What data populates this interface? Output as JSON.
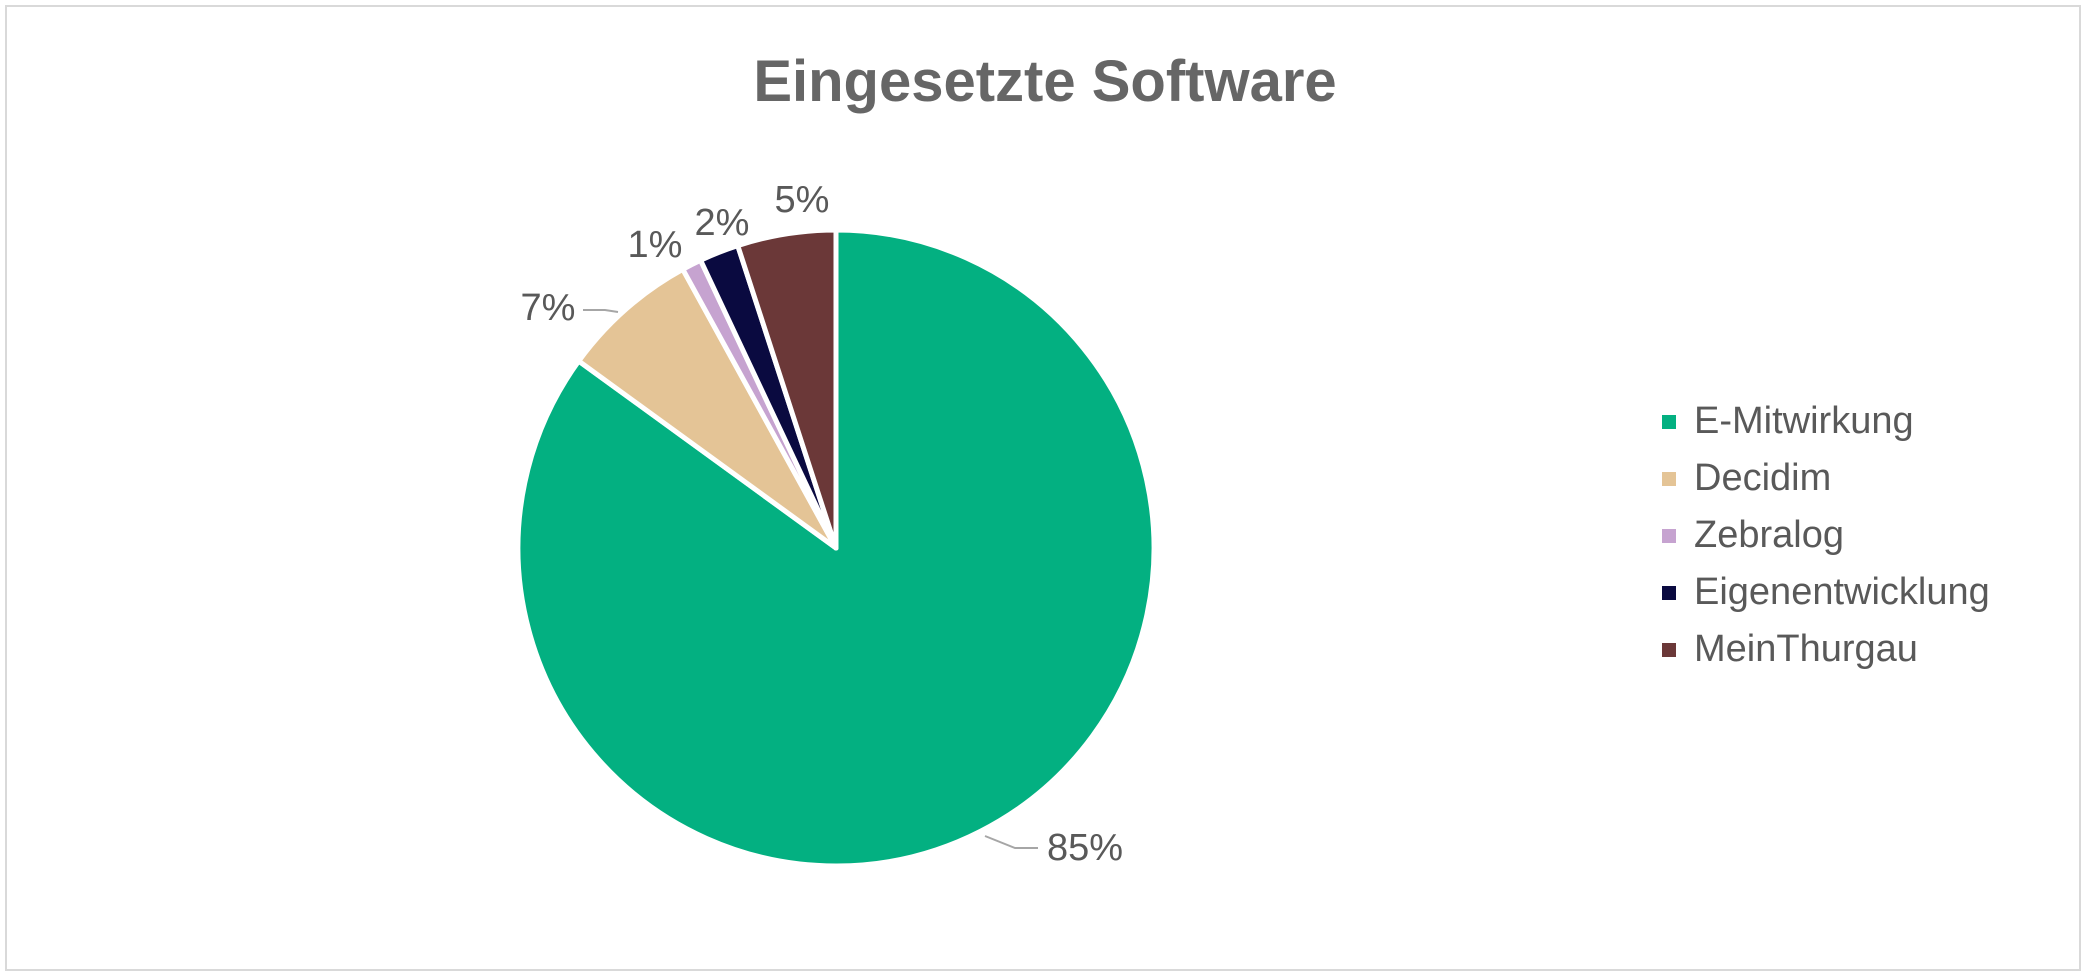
{
  "chart_data": {
    "type": "pie",
    "title": "Eingesetzte Software",
    "slices": [
      {
        "name": "E-Mitwirkung",
        "value": 85,
        "label": "85%",
        "color": "#03b081"
      },
      {
        "name": "Decidim",
        "value": 7,
        "label": "7%",
        "color": "#e4c496"
      },
      {
        "name": "Zebralog",
        "value": 1,
        "label": "1%",
        "color": "#c6a3d0"
      },
      {
        "name": "Eigenentwicklung",
        "value": 2,
        "label": "2%",
        "color": "#0a0a40"
      },
      {
        "name": "MeinThurgau",
        "value": 5,
        "label": "5%",
        "color": "#6b3838"
      }
    ],
    "legend_position": "right"
  }
}
